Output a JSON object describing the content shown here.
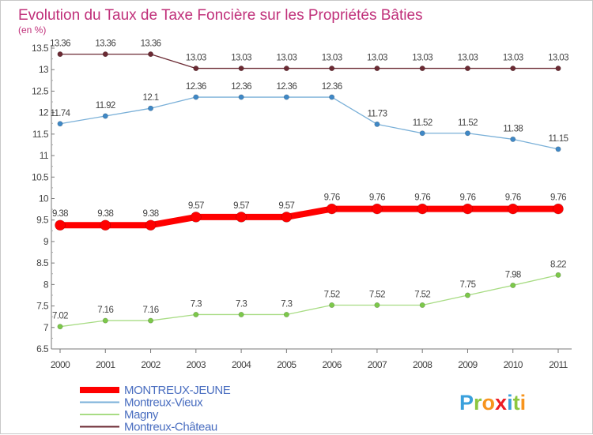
{
  "chart_data": {
    "type": "line",
    "title": "Evolution du Taux de Taxe Foncière sur les Propriétés Bâties",
    "subtitle": "(en %)",
    "xlabel": "",
    "ylabel": "",
    "categories": [
      "2000",
      "2001",
      "2002",
      "2003",
      "2004",
      "2005",
      "2006",
      "2007",
      "2008",
      "2009",
      "2010",
      "2011"
    ],
    "ylim": [
      6.5,
      13.5
    ],
    "yticks": [
      6.5,
      7,
      7.5,
      8,
      8.5,
      9,
      9.5,
      10,
      10.5,
      11,
      11.5,
      12,
      12.5,
      13,
      13.5
    ],
    "grid": false,
    "legend_position": "bottom-left",
    "series": [
      {
        "key": "montreux-chateau",
        "name": "Montreux-Château",
        "color": "#6b2a33",
        "marker": "#6b2a33",
        "values": [
          13.36,
          13.36,
          13.36,
          13.03,
          13.03,
          13.03,
          13.03,
          13.03,
          13.03,
          13.03,
          13.03,
          13.03
        ],
        "labels": [
          "13.36",
          "13.36",
          "13.36",
          "13.03",
          "13.03",
          "13.03",
          "13.03",
          "13.03",
          "13.03",
          "13.03",
          "13.03",
          "13.03"
        ]
      },
      {
        "key": "montreux-vieux",
        "name": "Montreux-Vieux",
        "color": "#7ab0d8",
        "marker": "#3f88c6",
        "values": [
          11.74,
          11.92,
          12.1,
          12.36,
          12.36,
          12.36,
          12.36,
          11.73,
          11.52,
          11.52,
          11.38,
          11.15
        ],
        "labels": [
          "11.74",
          "11.92",
          "12.1",
          "12.36",
          "12.36",
          "12.36",
          "12.36",
          "11.73",
          "11.52",
          "11.52",
          "11.38",
          "11.15"
        ]
      },
      {
        "key": "montreux-jeune",
        "name": "MONTREUX-JEUNE",
        "color": "#ff0000",
        "marker": "#ff0000",
        "values": [
          9.38,
          9.38,
          9.38,
          9.57,
          9.57,
          9.57,
          9.76,
          9.76,
          9.76,
          9.76,
          9.76,
          9.76
        ],
        "labels": [
          "9.38",
          "9.38",
          "9.38",
          "9.57",
          "9.57",
          "9.57",
          "9.76",
          "9.76",
          "9.76",
          "9.76",
          "9.76",
          "9.76"
        ]
      },
      {
        "key": "magny",
        "name": "Magny",
        "color": "#a8dc84",
        "marker": "#7cc84a",
        "values": [
          7.02,
          7.16,
          7.16,
          7.3,
          7.3,
          7.3,
          7.52,
          7.52,
          7.52,
          7.75,
          7.98,
          8.22
        ],
        "labels": [
          "7.02",
          "7.16",
          "7.16",
          "7.3",
          "7.3",
          "7.3",
          "7.52",
          "7.52",
          "7.52",
          "7.75",
          "7.98",
          "8.22"
        ]
      }
    ]
  },
  "legend": [
    {
      "key": "montreux-jeune",
      "label": "MONTREUX-JEUNE",
      "color": "#ff0000",
      "text_color": "#4a6ec0"
    },
    {
      "key": "montreux-vieux",
      "label": "Montreux-Vieux",
      "color": "#7ab0d8",
      "text_color": "#4a6ec0"
    },
    {
      "key": "magny",
      "label": "Magny",
      "color": "#a8dc84",
      "text_color": "#4a6ec0"
    },
    {
      "key": "montreux-chateau",
      "label": "Montreux-Château",
      "color": "#6b2a33",
      "text_color": "#4a6ec0"
    }
  ],
  "logo": {
    "text": "Proxiti",
    "letters": [
      {
        "char": "P",
        "color": "#3aa0dc"
      },
      {
        "char": "r",
        "color": "#8cc63f"
      },
      {
        "char": "o",
        "color": "#f7941d"
      },
      {
        "char": "x",
        "color": "#ec1c24"
      },
      {
        "char": "i",
        "color": "#3aa0dc"
      },
      {
        "char": "t",
        "color": "#8cc63f"
      },
      {
        "char": "i",
        "color": "#f7941d"
      }
    ]
  }
}
